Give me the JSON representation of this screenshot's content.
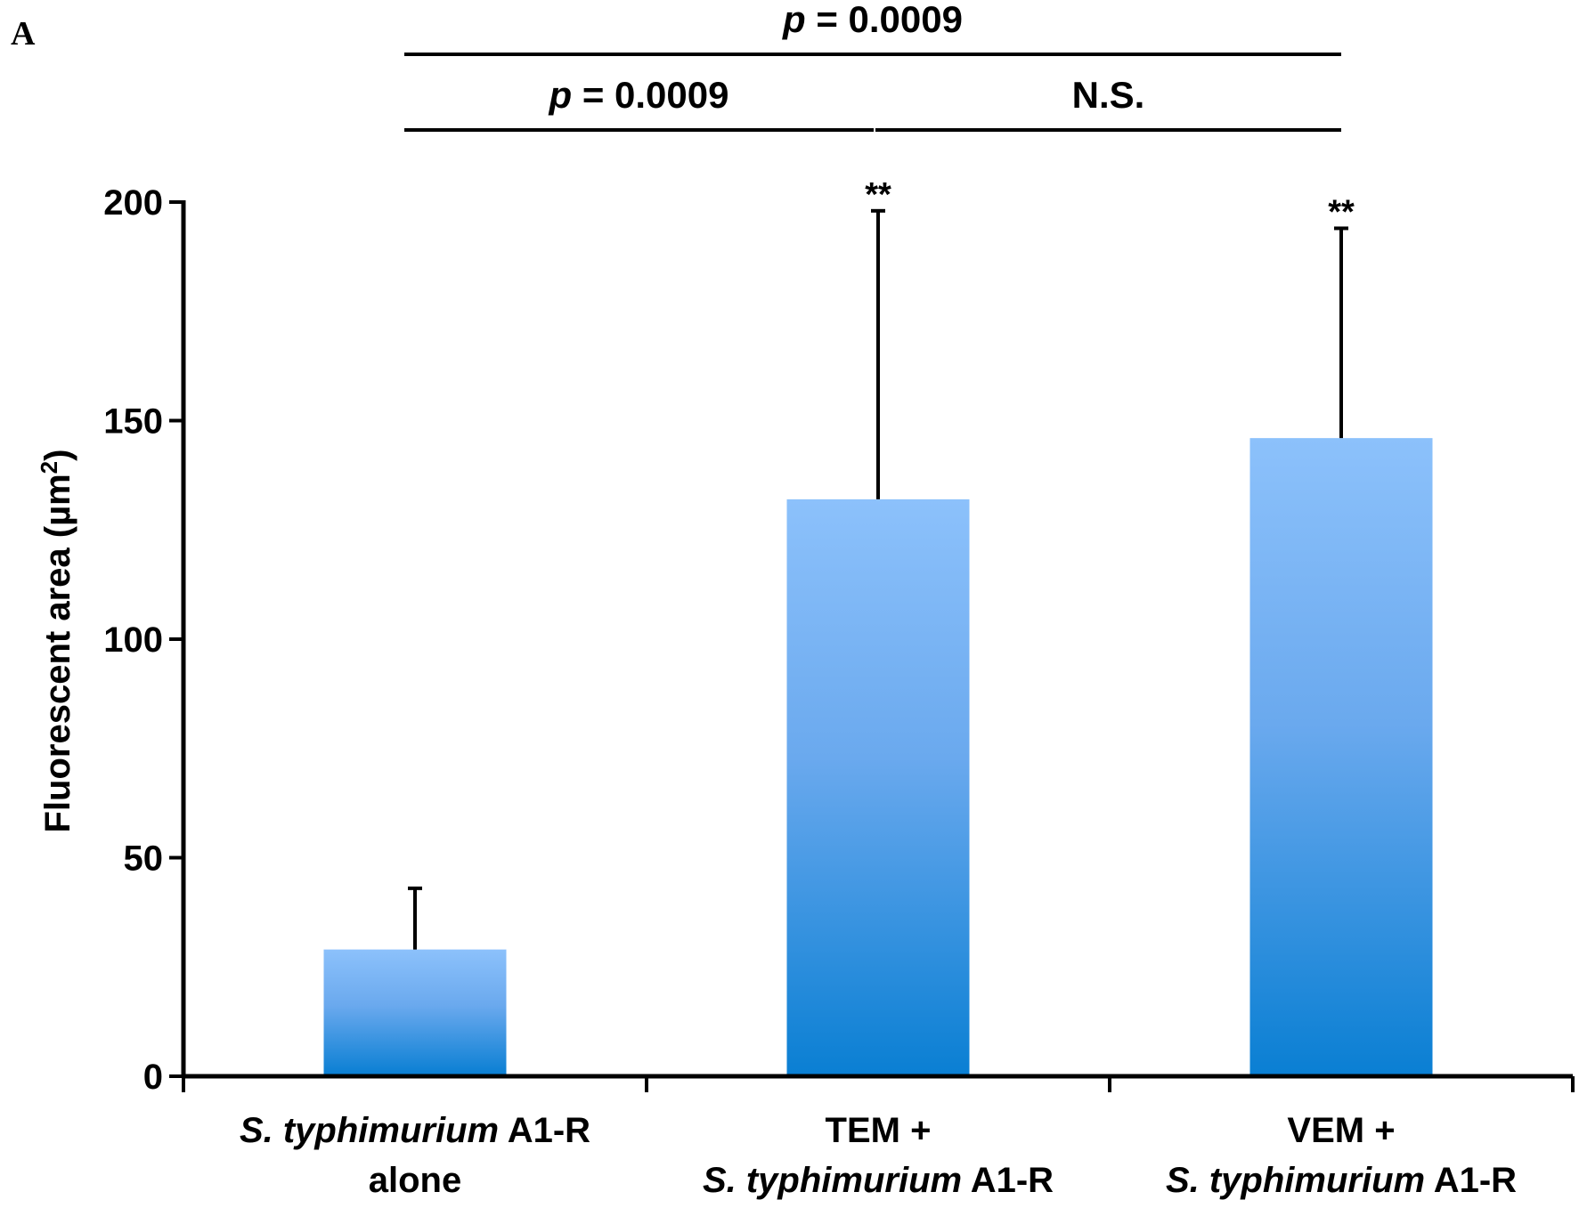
{
  "panel_label": "A",
  "chart_data": {
    "type": "bar",
    "title": "",
    "xlabel": "",
    "ylabel": "Fluorescent area (µm",
    "ylabel_sup": "2",
    "ylabel_close": ")",
    "ylim": [
      0,
      200
    ],
    "yticks": [
      0,
      50,
      100,
      150,
      200
    ],
    "ytick_labels": [
      "0",
      "50",
      "100",
      "150",
      "200"
    ],
    "categories": [
      {
        "line1_italic": "S. typhimurium",
        "line1_rest": " A1-R",
        "line2_prefix": "",
        "line2_italic": "",
        "line2_rest": "alone"
      },
      {
        "line1_italic": "",
        "line1_rest": "TEM +",
        "line2_prefix": "",
        "line2_italic": "S. typhimurium",
        "line2_rest": " A1-R"
      },
      {
        "line1_italic": "",
        "line1_rest": "VEM +",
        "line2_prefix": "",
        "line2_italic": "S. typhimurium",
        "line2_rest": " A1-R"
      }
    ],
    "values": [
      29,
      132,
      146
    ],
    "errors": [
      14,
      66,
      48
    ],
    "significance_marks": [
      "",
      "**",
      "**"
    ],
    "comparisons": [
      {
        "from": 0,
        "to": 2,
        "level": 2,
        "p_italic": "p",
        "label": " = 0.0009"
      },
      {
        "from": 0,
        "to": 1,
        "level": 1,
        "p_italic": "p",
        "label": " = 0.0009"
      },
      {
        "from": 1,
        "to": 2,
        "level": 1,
        "p_italic": "",
        "label": "N.S."
      }
    ],
    "bar_gradient": {
      "top": "#8cc1fb",
      "bottom": "#0a7fd3"
    },
    "axis_color": "#000000",
    "grid": false
  }
}
